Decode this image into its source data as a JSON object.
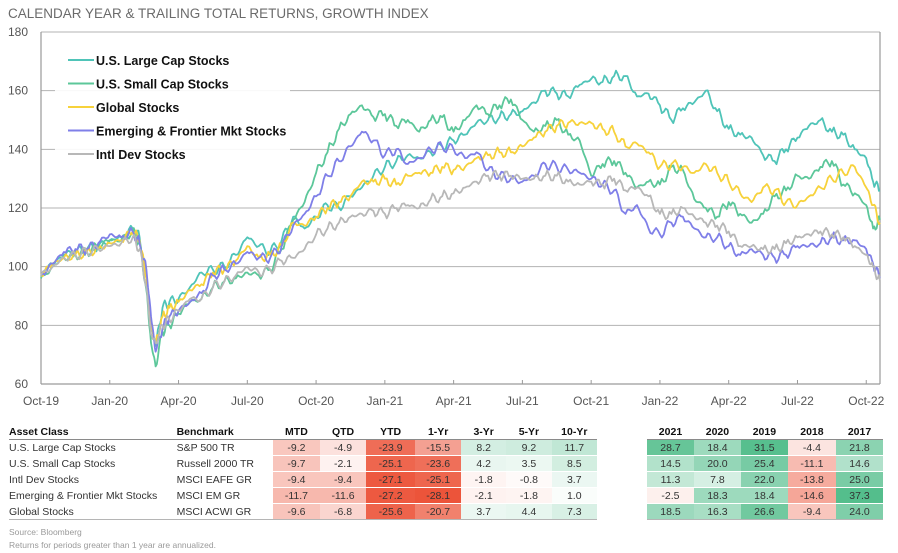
{
  "chart_data": {
    "type": "line",
    "title": "CALENDAR YEAR & TRAILING TOTAL RETURNS, GROWTH INDEX",
    "xlabel": "",
    "ylabel": "",
    "ylim": [
      60,
      180
    ],
    "yticks": [
      60,
      80,
      100,
      120,
      140,
      160,
      180
    ],
    "xticks": [
      "Oct-19",
      "Jan-20",
      "Apr-20",
      "Jul-20",
      "Oct-20",
      "Jan-21",
      "Apr-21",
      "Jul-21",
      "Oct-21",
      "Jan-22",
      "Apr-22",
      "Jul-22",
      "Oct-22"
    ],
    "x_range_months": [
      0,
      36.6
    ],
    "grid": true,
    "legend_position": "top-left",
    "x_months": [
      0,
      0.5,
      1,
      1.5,
      2,
      2.5,
      3,
      3.5,
      4,
      4.3,
      4.6,
      4.8,
      5,
      5.3,
      5.6,
      6,
      6.5,
      7,
      7.5,
      8,
      8.5,
      9,
      9.5,
      10,
      10.5,
      11,
      11.5,
      12,
      12.5,
      13,
      13.5,
      14,
      14.5,
      15,
      15.5,
      16,
      16.5,
      17,
      17.5,
      18,
      18.5,
      19,
      19.5,
      20,
      20.5,
      21,
      21.5,
      22,
      22.5,
      23,
      23.5,
      24,
      24.5,
      25,
      25.5,
      26,
      26.5,
      27,
      27.5,
      28,
      28.5,
      29,
      29.5,
      30,
      30.5,
      31,
      31.5,
      32,
      32.5,
      33,
      33.5,
      34,
      34.5,
      35,
      35.5,
      36,
      36.3,
      36.6
    ],
    "series": [
      {
        "name": "U.S. Large Cap Stocks",
        "color": "#4fc4b8",
        "values": [
          97,
          101,
          104,
          105,
          106,
          107,
          109,
          110,
          113,
          110,
          97,
          80,
          73,
          86,
          88,
          89,
          93,
          98,
          99,
          100,
          104,
          110,
          107,
          105,
          109,
          117,
          113,
          117,
          121,
          120,
          124,
          127,
          131,
          134,
          136,
          138,
          137,
          139,
          141,
          143,
          145,
          149,
          150,
          151,
          152,
          153,
          156,
          160,
          159,
          158,
          162,
          164,
          163,
          165,
          165,
          158,
          159,
          155,
          150,
          154,
          156,
          160,
          153,
          147,
          145,
          144,
          138,
          136,
          140,
          144,
          148,
          150,
          146,
          145,
          140,
          137,
          129,
          126
        ]
      },
      {
        "name": "U.S. Small Cap Stocks",
        "color": "#5cc79a",
        "values": [
          96,
          100,
          103,
          104,
          105,
          107,
          109,
          109,
          112,
          108,
          92,
          74,
          66,
          78,
          80,
          84,
          88,
          89,
          93,
          95,
          96,
          98,
          97,
          99,
          106,
          116,
          122,
          132,
          139,
          147,
          152,
          155,
          151,
          152,
          148,
          150,
          146,
          150,
          151,
          146,
          150,
          155,
          152,
          155,
          157,
          150,
          146,
          148,
          150,
          145,
          143,
          131,
          135,
          136,
          132,
          127,
          129,
          128,
          134,
          133,
          123,
          120,
          117,
          122,
          118,
          115,
          118,
          124,
          126,
          131,
          130,
          134,
          136,
          128,
          125,
          121,
          113,
          116
        ]
      },
      {
        "name": "Global Stocks",
        "color": "#f7d23b",
        "values": [
          97,
          101,
          103,
          104,
          105,
          106,
          108,
          109,
          112,
          109,
          96,
          80,
          74,
          83,
          86,
          88,
          92,
          94,
          98,
          99,
          102,
          107,
          103,
          104,
          107,
          115,
          114,
          117,
          120,
          122,
          124,
          129,
          129,
          130,
          128,
          131,
          132,
          132,
          134,
          133,
          134,
          137,
          138,
          139,
          139,
          141,
          144,
          146,
          148,
          149,
          149,
          149,
          147,
          146,
          141,
          142,
          139,
          134,
          135,
          134,
          132,
          135,
          132,
          129,
          125,
          122,
          127,
          126,
          122,
          121,
          124,
          127,
          130,
          132,
          134,
          127,
          121,
          115
        ]
      },
      {
        "name": "Emerging & Frontier Mkt Stocks",
        "color": "#7f7fe8",
        "values": [
          97,
          101,
          105,
          106,
          106,
          108,
          111,
          110,
          112,
          108,
          99,
          83,
          71,
          79,
          83,
          85,
          88,
          91,
          97,
          99,
          101,
          105,
          103,
          103,
          107,
          114,
          118,
          124,
          131,
          136,
          141,
          146,
          143,
          138,
          140,
          135,
          137,
          140,
          141,
          140,
          137,
          139,
          133,
          131,
          130,
          129,
          131,
          135,
          134,
          133,
          132,
          130,
          128,
          126,
          118,
          121,
          113,
          111,
          115,
          117,
          113,
          110,
          110,
          107,
          104,
          106,
          104,
          103,
          104,
          107,
          107,
          108,
          110,
          109,
          109,
          106,
          101,
          96
        ]
      },
      {
        "name": "Intl Dev Stocks",
        "color": "#b8b8b8",
        "values": [
          97,
          100,
          103,
          104,
          105,
          106,
          107,
          108,
          110,
          106,
          93,
          77,
          74,
          80,
          82,
          85,
          89,
          89,
          93,
          95,
          97,
          100,
          98,
          99,
          102,
          103,
          106,
          111,
          113,
          115,
          117,
          118,
          119,
          118,
          120,
          121,
          120,
          123,
          124,
          125,
          127,
          129,
          131,
          131,
          131,
          130,
          130,
          131,
          131,
          129,
          128,
          129,
          128,
          130,
          126,
          127,
          124,
          118,
          118,
          120,
          117,
          115,
          114,
          112,
          107,
          107,
          106,
          106,
          108,
          110,
          111,
          112,
          111,
          110,
          107,
          104,
          100,
          95
        ]
      }
    ]
  },
  "table": {
    "headers": [
      "Asset Class",
      "Benchmark",
      "MTD",
      "QTD",
      "YTD",
      "1-Yr",
      "3-Yr",
      "5-Yr",
      "10-Yr",
      "2021",
      "2020",
      "2019",
      "2018",
      "2017"
    ],
    "rows": [
      {
        "asset": "U.S. Large Cap Stocks",
        "benchmark": "S&P 500 TR",
        "values": [
          "-9.2",
          "-4.9",
          "-23.9",
          "-15.5",
          "8.2",
          "9.2",
          "11.7",
          "28.7",
          "18.4",
          "31.5",
          "-4.4",
          "21.8"
        ]
      },
      {
        "asset": "U.S. Small Cap Stocks",
        "benchmark": "Russell 2000 TR",
        "values": [
          "-9.7",
          "-2.1",
          "-25.1",
          "-23.6",
          "4.2",
          "3.5",
          "8.5",
          "14.5",
          "20.0",
          "25.4",
          "-11.1",
          "14.6"
        ]
      },
      {
        "asset": "Intl Dev Stocks",
        "benchmark": "MSCI EAFE GR",
        "values": [
          "-9.4",
          "-9.4",
          "-27.1",
          "-25.1",
          "-1.8",
          "-0.8",
          "3.7",
          "11.3",
          "7.8",
          "22.0",
          "-13.8",
          "25.0"
        ]
      },
      {
        "asset": "Emerging & Frontier Mkt Stocks",
        "benchmark": "MSCI EM GR",
        "values": [
          "-11.7",
          "-11.6",
          "-27.2",
          "-28.1",
          "-2.1",
          "-1.8",
          "1.0",
          "-2.5",
          "18.3",
          "18.4",
          "-14.6",
          "37.3"
        ]
      },
      {
        "asset": "Global Stocks",
        "benchmark": "MSCI ACWI GR",
        "values": [
          "-9.6",
          "-6.8",
          "-25.6",
          "-20.7",
          "3.7",
          "4.4",
          "7.3",
          "18.5",
          "16.3",
          "26.6",
          "-9.4",
          "24.0"
        ]
      }
    ]
  },
  "colors": {
    "negative_strong": "#ee5a3c",
    "positive_strong": "#4fbf86"
  },
  "footnotes": {
    "source": "Source: Bloomberg",
    "note": "Returns for periods greater than 1 year are annualized."
  }
}
